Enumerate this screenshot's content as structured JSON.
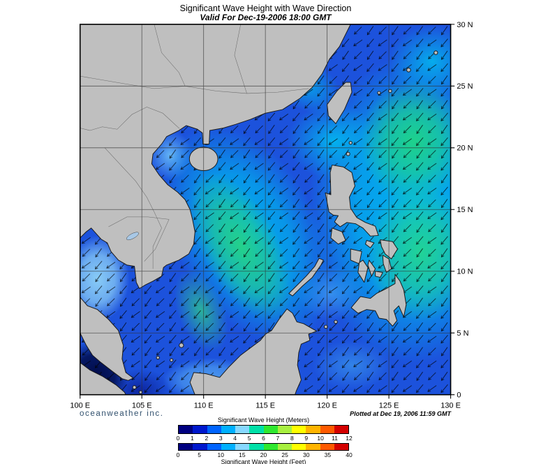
{
  "header": {
    "title": "Significant Wave Height with Wave Direction",
    "subtitle": "Valid For Dec-19-2006 18:00 GMT"
  },
  "map": {
    "lat_labels": [
      "30 N",
      "25 N",
      "20 N",
      "15 N",
      "10 N",
      "5 N",
      "0"
    ],
    "lon_labels": [
      "100 E",
      "105 E",
      "110 E",
      "115 E",
      "120 E",
      "125 E",
      "130 E"
    ]
  },
  "footer": {
    "brand": "oceanweather inc.",
    "plotted": "Plotted at Dec 19, 2006 11:59 GMT"
  },
  "legend": {
    "meters": {
      "title": "Significant Wave Height (Meters)",
      "ticks": [
        "0",
        "1",
        "2",
        "3",
        "4",
        "5",
        "6",
        "7",
        "8",
        "9",
        "10",
        "11",
        "12"
      ]
    },
    "feet": {
      "title": "Significant Wave Height (Feet)",
      "ticks": [
        "0",
        "5",
        "10",
        "15",
        "20",
        "25",
        "30",
        "35",
        "40"
      ]
    },
    "colors": [
      "#000080",
      "#0018cd",
      "#0064ff",
      "#00b0ff",
      "#87d8ff",
      "#00e0a8",
      "#30e830",
      "#a8f040",
      "#ffff00",
      "#ffb400",
      "#ff5a00",
      "#d40000"
    ]
  },
  "colors": {
    "ocean_base": "#1c52dc",
    "land": "#bfbfbf",
    "grid": "#333333"
  }
}
